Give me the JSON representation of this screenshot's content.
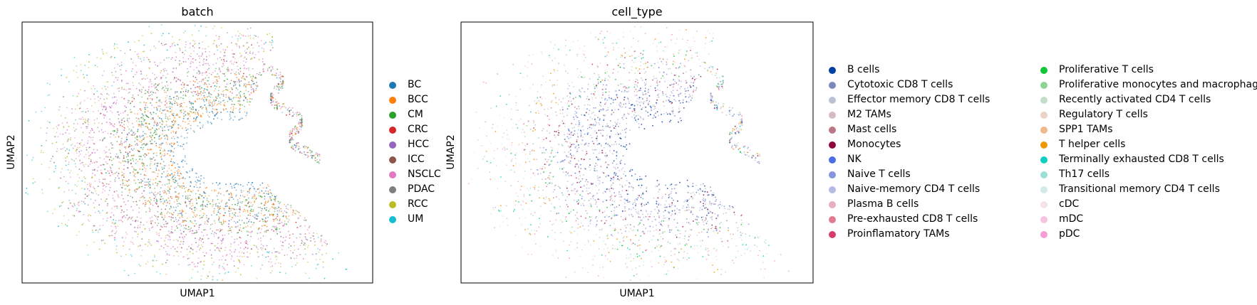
{
  "chart_data": [
    {
      "type": "scatter",
      "title": "batch",
      "xlabel": "UMAP1",
      "ylabel": "UMAP2",
      "grid": false,
      "legend_position": "right",
      "series": [
        {
          "name": "BC",
          "color": "#1f77b4"
        },
        {
          "name": "BCC",
          "color": "#ff7f0e"
        },
        {
          "name": "CM",
          "color": "#2ca02c"
        },
        {
          "name": "CRC",
          "color": "#d62728"
        },
        {
          "name": "HCC",
          "color": "#9467bd"
        },
        {
          "name": "ICC",
          "color": "#8c564b"
        },
        {
          "name": "NSCLC",
          "color": "#e377c2"
        },
        {
          "name": "PDAC",
          "color": "#7f7f7f"
        },
        {
          "name": "RCC",
          "color": "#bcbd22"
        },
        {
          "name": "UM",
          "color": "#17becf"
        }
      ]
    },
    {
      "type": "scatter",
      "title": "cell_type",
      "xlabel": "UMAP1",
      "ylabel": "UMAP2",
      "grid": false,
      "legend_position": "right",
      "series": [
        {
          "name": "B cells",
          "color": "#023fa5"
        },
        {
          "name": "Cytotoxic CD8 T cells",
          "color": "#7d87b9"
        },
        {
          "name": "Effector memory CD8 T cells",
          "color": "#bec1d4"
        },
        {
          "name": "M2 TAMs",
          "color": "#d6bcc0"
        },
        {
          "name": "Mast cells",
          "color": "#bb7784"
        },
        {
          "name": "Monocytes",
          "color": "#8e063b"
        },
        {
          "name": "NK",
          "color": "#4a6fe3"
        },
        {
          "name": "Naive T cells",
          "color": "#8595e1"
        },
        {
          "name": "Naive-memory CD4 T cells",
          "color": "#b5bbe3"
        },
        {
          "name": "Plasma B cells",
          "color": "#e6afb9"
        },
        {
          "name": "Pre-exhausted CD8 T cells",
          "color": "#e07b91"
        },
        {
          "name": "Proinflamatory TAMs",
          "color": "#d33f6a"
        },
        {
          "name": "Proliferative T cells",
          "color": "#11c638"
        },
        {
          "name": "Proliferative monocytes and macrophages",
          "color": "#8dd593"
        },
        {
          "name": "Recently activated CD4 T cells",
          "color": "#c6dec7"
        },
        {
          "name": "Regulatory T cells",
          "color": "#ead3c6"
        },
        {
          "name": "SPP1 TAMs",
          "color": "#f0b98d"
        },
        {
          "name": "T helper cells",
          "color": "#ef9708"
        },
        {
          "name": "Terminally exhausted CD8 T cells",
          "color": "#0fcfc0"
        },
        {
          "name": "Th17 cells",
          "color": "#9cded6"
        },
        {
          "name": "Transitional memory CD4 T cells",
          "color": "#d5eae7"
        },
        {
          "name": "cDC",
          "color": "#f3e1eb"
        },
        {
          "name": "mDC",
          "color": "#f6c4e1"
        },
        {
          "name": "pDC",
          "color": "#f79cd4"
        }
      ]
    }
  ]
}
